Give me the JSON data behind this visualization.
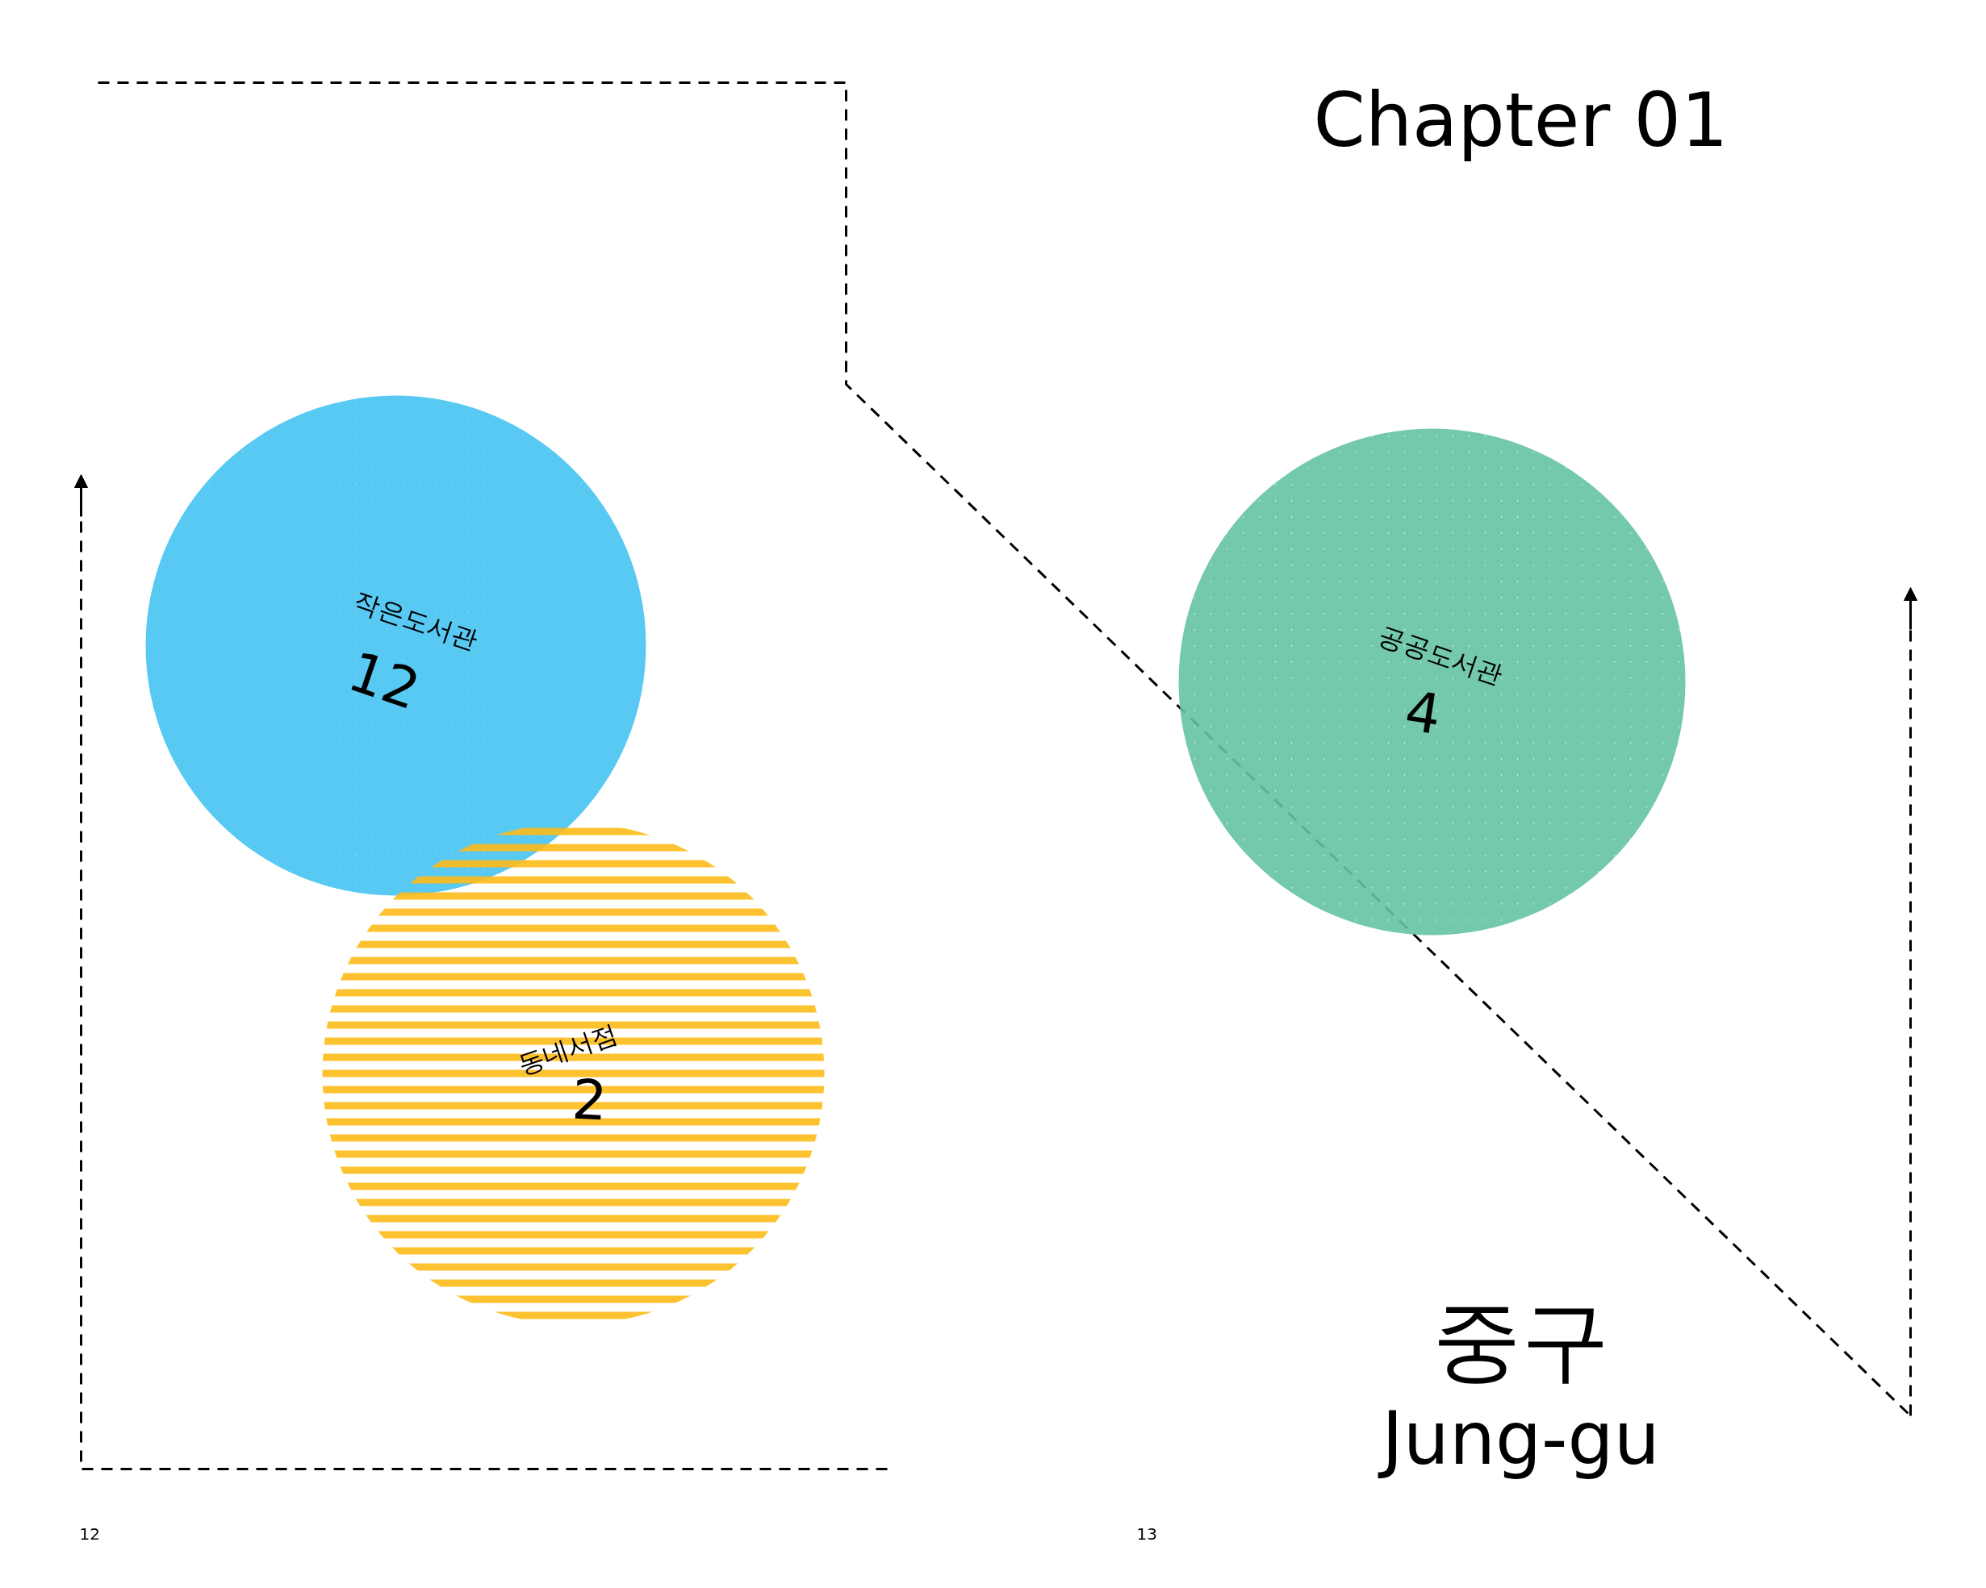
{
  "chart_data": {
    "type": "other",
    "title": "Chapter 01",
    "subtitle": "중구",
    "categories": [
      "작은도서관",
      "동네서점",
      "공공도서관"
    ],
    "values": [
      12,
      2,
      4
    ],
    "colors": [
      "#45c3f2",
      "#fdbb1a",
      "#65c3a2"
    ],
    "data_labels": true,
    "annotations": [
      "Jung-gu",
      "12",
      "13"
    ]
  }
}
